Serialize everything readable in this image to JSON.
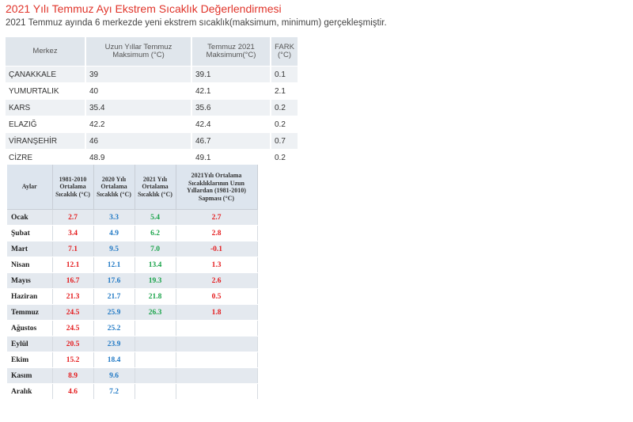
{
  "title": "2021 Yılı Temmuz Ayı Ekstrem Sıcaklık Değerlendirmesi",
  "subtitle": "2021 Temmuz ayında 6 merkezde yeni ekstrem sıcaklık(maksimum, minimum) gerçekleşmiştir.",
  "table1": {
    "headers": [
      "Merkez",
      "Uzun Yıllar Temmuz Maksimum (°C)",
      "Temmuz 2021 Maksimum(°C)",
      "FARK (°C)"
    ],
    "rows": [
      [
        "ÇANAKKALE",
        "39",
        "39.1",
        "0.1"
      ],
      [
        "YUMURTALIK",
        "40",
        "42.1",
        "2.1"
      ],
      [
        "KARS",
        "35.4",
        "35.6",
        "0.2"
      ],
      [
        "ELAZIĞ",
        "42.2",
        "42.4",
        "0.2"
      ],
      [
        "VİRANŞEHİR",
        "46",
        "46.7",
        "0.7"
      ],
      [
        "CİZRE",
        "48.9",
        "49.1",
        "0.2"
      ]
    ]
  },
  "table2": {
    "headers": [
      "Aylar",
      "1981-2010 Ortalama Sıcaklık (°C)",
      "2020 Yılı Ortalama Sıcaklık (°C)",
      "2021 Yılı Ortalama Sıcaklık (°C)",
      "2021Yılı Ortalama Sıcaklıklarının Uzun Yıllardan (1981-2010) Sapması (°C)"
    ],
    "colors": {
      "col1": "#e41a1c",
      "col2": "#1f78c4",
      "col3": "#1aa34a",
      "col4": "#e41a1c"
    },
    "rows": [
      [
        "Ocak",
        "2.7",
        "3.3",
        "5.4",
        "2.7"
      ],
      [
        "Şubat",
        "3.4",
        "4.9",
        "6.2",
        "2.8"
      ],
      [
        "Mart",
        "7.1",
        "9.5",
        "7.0",
        "-0.1"
      ],
      [
        "Nisan",
        "12.1",
        "12.1",
        "13.4",
        "1.3"
      ],
      [
        "Mayıs",
        "16.7",
        "17.6",
        "19.3",
        "2.6"
      ],
      [
        "Haziran",
        "21.3",
        "21.7",
        "21.8",
        "0.5"
      ],
      [
        "Temmuz",
        "24.5",
        "25.9",
        "26.3",
        "1.8"
      ],
      [
        "Ağustos",
        "24.5",
        "25.2",
        "",
        ""
      ],
      [
        "Eylül",
        "20.5",
        "23.9",
        "",
        ""
      ],
      [
        "Ekim",
        "15.2",
        "18.4",
        "",
        ""
      ],
      [
        "Kasım",
        "8.9",
        "9.6",
        "",
        ""
      ],
      [
        "Aralık",
        "4.6",
        "7.2",
        "",
        ""
      ]
    ]
  }
}
